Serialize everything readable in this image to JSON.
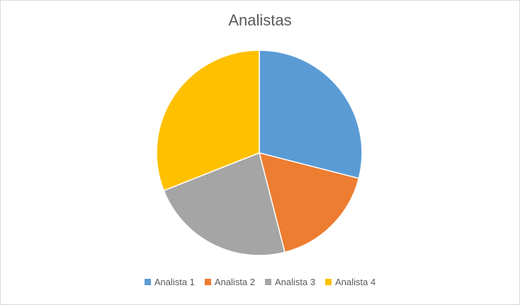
{
  "chart_data": {
    "type": "pie",
    "title": "Analistas",
    "categories": [
      "Analista 1",
      "Analista 2",
      "Analista 3",
      "Analista 4"
    ],
    "values": [
      29,
      17,
      23,
      31
    ],
    "colors": [
      "#5b9bd5",
      "#ed7d31",
      "#a5a5a5",
      "#ffc000"
    ],
    "legend": "bottom"
  }
}
